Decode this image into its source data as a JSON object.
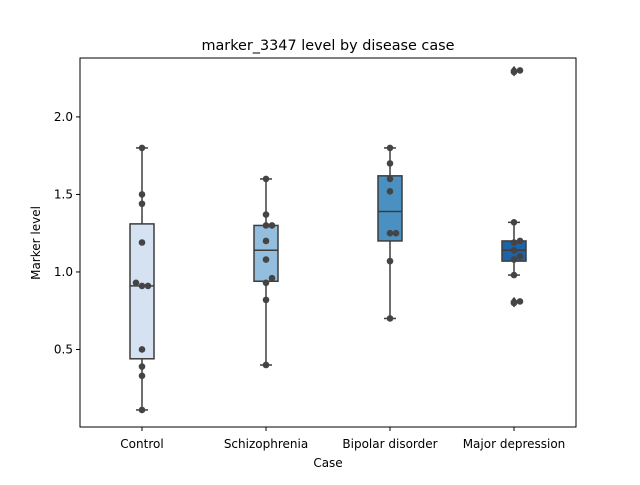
{
  "chart_data": {
    "type": "box",
    "title": "marker_3347 level by disease case",
    "xlabel": "Case",
    "ylabel": "Marker level",
    "ylim": [
      0.0,
      2.38
    ],
    "yticks": [
      0.5,
      1.0,
      1.5,
      2.0
    ],
    "ytick_labels": [
      "0.5",
      "1.0",
      "1.5",
      "2.0"
    ],
    "grid": false,
    "legend": "none",
    "categories": [
      "Control",
      "Schizophrenia",
      "Bipolar disorder",
      "Major depression"
    ],
    "groups": [
      {
        "name": "Control",
        "color": "#d4e2f2",
        "box": {
          "whisker_low": 0.11,
          "q1": 0.44,
          "median": 0.91,
          "q3": 1.31,
          "whisker_high": 1.8
        },
        "fliers": [],
        "points": [
          0.11,
          0.33,
          0.39,
          0.5,
          0.91,
          0.91,
          0.93,
          1.19,
          1.44,
          1.5,
          1.8
        ]
      },
      {
        "name": "Schizophrenia",
        "color": "#93bedd",
        "box": {
          "whisker_low": 0.4,
          "q1": 0.94,
          "median": 1.14,
          "q3": 1.3,
          "whisker_high": 1.6
        },
        "fliers": [],
        "points": [
          0.4,
          0.82,
          0.93,
          0.96,
          1.08,
          1.2,
          1.3,
          1.3,
          1.37,
          1.6
        ]
      },
      {
        "name": "Bipolar disorder",
        "color": "#4a91c2",
        "box": {
          "whisker_low": 0.7,
          "q1": 1.2,
          "median": 1.39,
          "q3": 1.62,
          "whisker_high": 1.8
        },
        "fliers": [],
        "points": [
          0.7,
          1.07,
          1.25,
          1.25,
          1.52,
          1.6,
          1.7,
          1.8
        ]
      },
      {
        "name": "Major depression",
        "color": "#1d63a6",
        "box": {
          "whisker_low": 0.98,
          "q1": 1.07,
          "median": 1.14,
          "q3": 1.2,
          "whisker_high": 1.32
        },
        "fliers": [
          0.8,
          0.81,
          2.29,
          2.3
        ],
        "points": [
          0.8,
          0.81,
          0.98,
          1.08,
          1.1,
          1.14,
          1.19,
          1.2,
          1.32,
          2.29,
          2.3
        ]
      }
    ]
  }
}
